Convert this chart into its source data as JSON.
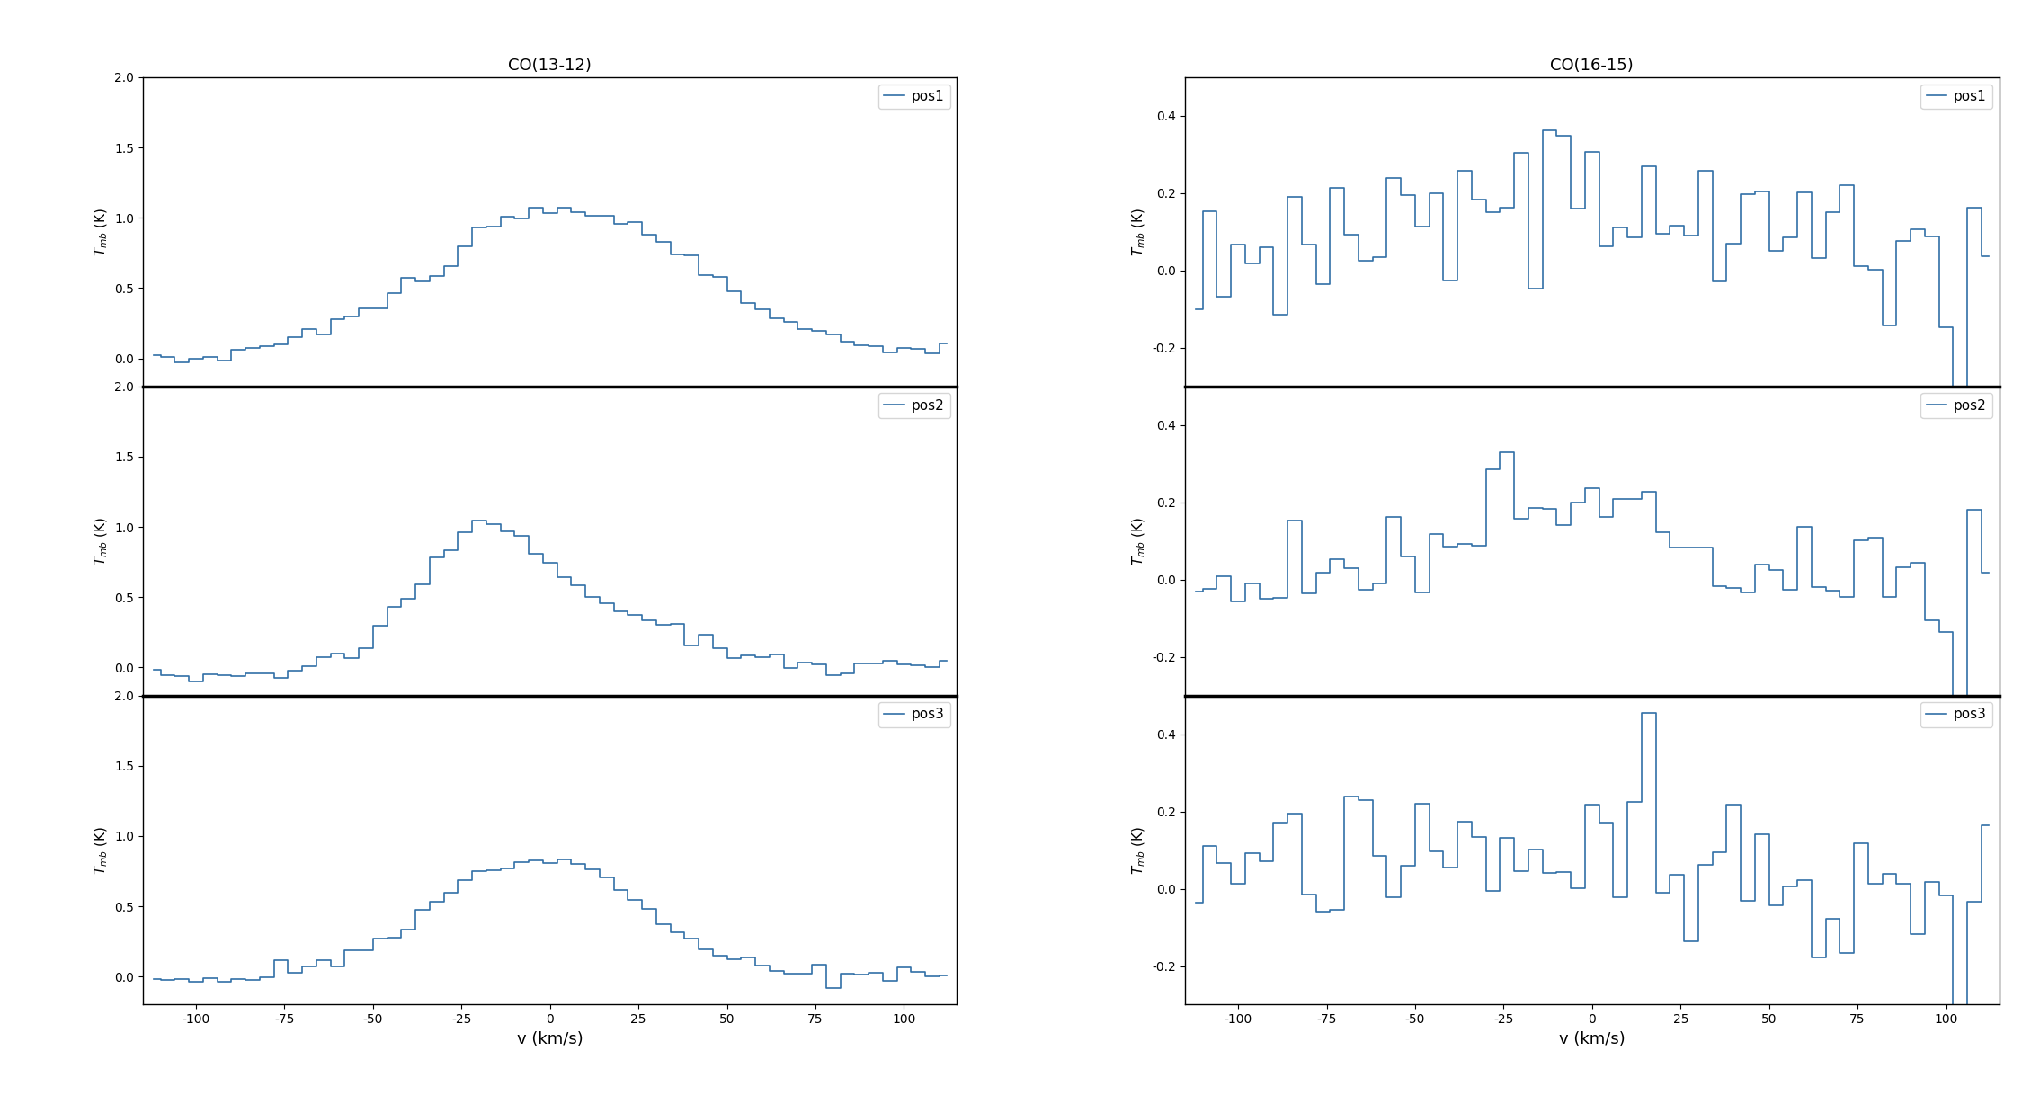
{
  "title_left": "CO(13-12)",
  "title_right": "CO(16-15)",
  "xlabel": "v (km/s)",
  "line_color": "#3170a7",
  "left_ylim": [
    -0.2,
    2.0
  ],
  "right_ylim": [
    -0.3,
    0.5
  ],
  "left_yticks": [
    0.0,
    0.5,
    1.0,
    1.5,
    2.0
  ],
  "right_yticks": [
    -0.2,
    0.0,
    0.2,
    0.4
  ],
  "xlim": [
    -115,
    115
  ],
  "xticks": [
    -100,
    -75,
    -50,
    -25,
    0,
    25,
    50,
    75,
    100
  ],
  "legend_labels": [
    "pos1",
    "pos2",
    "pos3"
  ]
}
